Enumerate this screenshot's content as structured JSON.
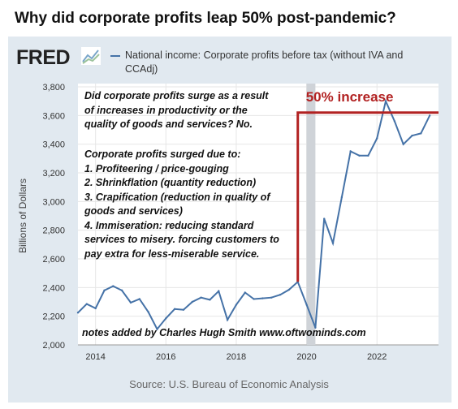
{
  "headline": "Why did corporate profits leap 50% post-pandemic?",
  "brand": {
    "logo_text": "FRED",
    "logo_icon": "line-chart-icon"
  },
  "legend_label": "National income: Corporate profits before tax (without IVA and CCAdj)",
  "source": "Source: U.S. Bureau of Economic Analysis",
  "annotation_label": "50% increase",
  "notes": {
    "question": [
      "Did corporate profits surge as a result",
      "of increases in productivity or the",
      "quality of goods and services? No."
    ],
    "reasons": [
      "Corporate profits surged due to:",
      "1. Profiteering / price-gouging",
      "2. Shrinkflation (quantity reduction)",
      "3. Crapification (reduction in quality of",
      "goods and services)",
      "4. Immiseration: reducing standard",
      "services to misery. forcing customers to",
      "pay extra for less-miserable service."
    ],
    "credit": "notes added by Charles Hugh Smith  www.oftwominds.com"
  },
  "colors": {
    "series": "#4572a7",
    "annotation": "#b22222",
    "recession": "#cfd3d8",
    "panel": "#e1e9f0"
  },
  "chart_data": {
    "type": "line",
    "ylabel": "Billions of Dollars",
    "ylim": [
      2000,
      3800
    ],
    "xlim": [
      2013.5,
      2023.75
    ],
    "yticks": [
      2000,
      2200,
      2400,
      2600,
      2800,
      3000,
      3200,
      3400,
      3600,
      3800
    ],
    "ytick_labels": [
      "2,000",
      "2,200",
      "2,400",
      "2,600",
      "2,800",
      "3,000",
      "3,200",
      "3,400",
      "3,600",
      "3,800"
    ],
    "xticks": [
      2014,
      2016,
      2018,
      2020,
      2022
    ],
    "xtick_labels": [
      "2014",
      "2016",
      "2018",
      "2020",
      "2022"
    ],
    "grid": true,
    "recession_shading": [
      2020.0,
      2020.25
    ],
    "annotation": {
      "x_start": 2019.75,
      "y_level": 3620,
      "x_end": 2023.75
    },
    "series": [
      {
        "x": [
          2013.5,
          2013.75,
          2014.0,
          2014.25,
          2014.5,
          2014.75,
          2015.0,
          2015.25,
          2015.5,
          2015.75,
          2016.0,
          2016.25,
          2016.5,
          2016.75,
          2017.0,
          2017.25,
          2017.5,
          2017.75,
          2018.0,
          2018.25,
          2018.5,
          2018.75,
          2019.0,
          2019.25,
          2019.5,
          2019.75,
          2020.0,
          2020.25,
          2020.5,
          2020.75,
          2021.0,
          2021.25,
          2021.5,
          2021.75,
          2022.0,
          2022.25,
          2022.5,
          2022.75,
          2023.0,
          2023.25,
          2023.5
        ],
        "values": [
          2225,
          2285,
          2255,
          2380,
          2410,
          2380,
          2295,
          2320,
          2230,
          2110,
          2185,
          2250,
          2245,
          2300,
          2330,
          2315,
          2375,
          2175,
          2280,
          2365,
          2320,
          2325,
          2330,
          2350,
          2385,
          2440,
          2280,
          2120,
          2880,
          2710,
          3030,
          3350,
          3320,
          3320,
          3440,
          3700,
          3560,
          3400,
          3460,
          3475,
          3600
        ]
      }
    ]
  }
}
